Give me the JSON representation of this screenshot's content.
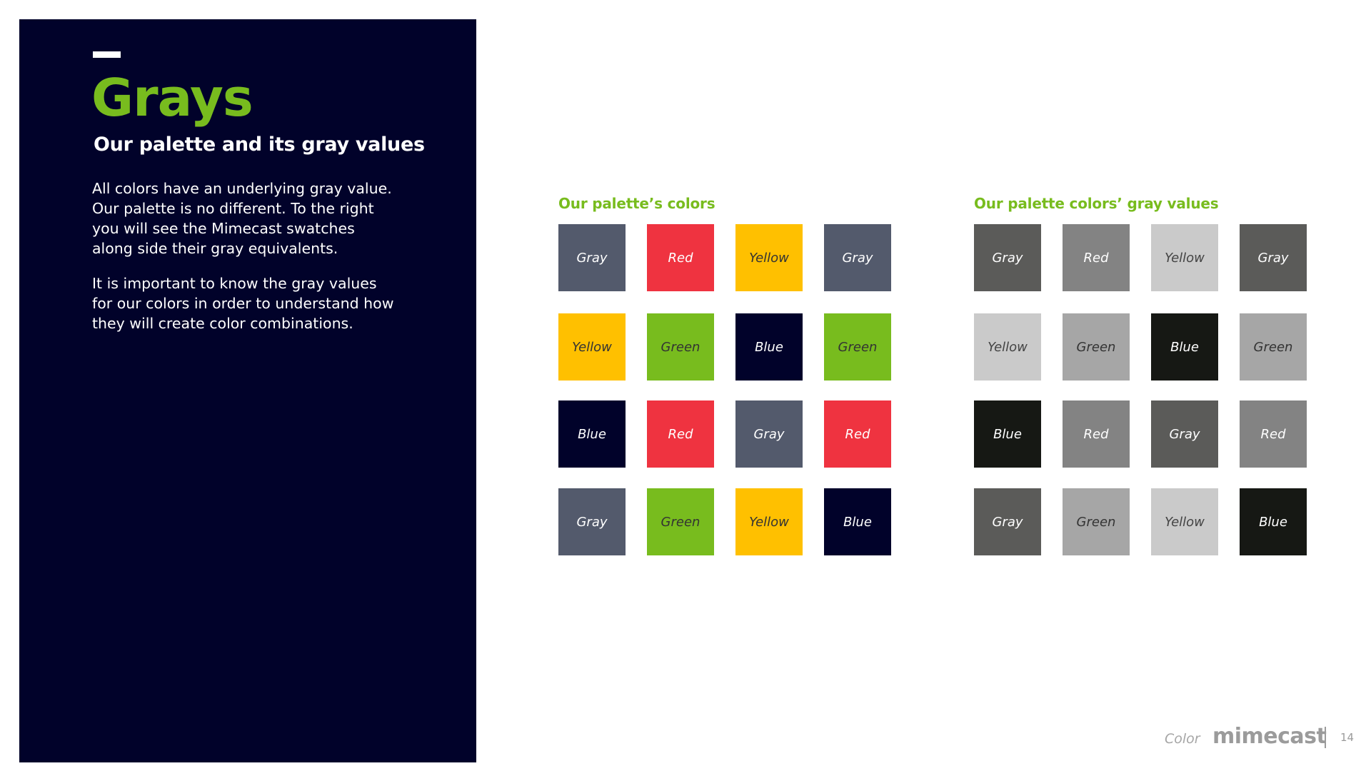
{
  "colors": {
    "panel_bg": "#01022a",
    "accent_green": "#78bc1e"
  },
  "slide": {
    "title": "Grays",
    "subtitle": "Our palette and its gray values",
    "paragraph1": "All colors have an underlying gray value. Our palette is no different. To the right you will see the Mimecast swatches along side their gray equivalents.",
    "paragraph2": "It is important to know the gray values for our colors in order to understand how they will create color combinations."
  },
  "palette": {
    "heading": "Our palette’s colors",
    "swatches": [
      {
        "label": "Gray",
        "bg": "#535a6c",
        "fg": "#ffffff"
      },
      {
        "label": "Red",
        "bg": "#ef3340",
        "fg": "#ffffff"
      },
      {
        "label": "Yellow",
        "bg": "#ffc000",
        "fg": "#333333"
      },
      {
        "label": "Gray",
        "bg": "#535a6c",
        "fg": "#ffffff"
      },
      {
        "label": "Yellow",
        "bg": "#ffc000",
        "fg": "#333333"
      },
      {
        "label": "Green",
        "bg": "#78bc1e",
        "fg": "#333333"
      },
      {
        "label": "Blue",
        "bg": "#01022a",
        "fg": "#ffffff"
      },
      {
        "label": "Green",
        "bg": "#78bc1e",
        "fg": "#333333"
      },
      {
        "label": "Blue",
        "bg": "#01022a",
        "fg": "#ffffff"
      },
      {
        "label": "Red",
        "bg": "#ef3340",
        "fg": "#ffffff"
      },
      {
        "label": "Gray",
        "bg": "#535a6c",
        "fg": "#ffffff"
      },
      {
        "label": "Red",
        "bg": "#ef3340",
        "fg": "#ffffff"
      },
      {
        "label": "Gray",
        "bg": "#535a6c",
        "fg": "#ffffff"
      },
      {
        "label": "Green",
        "bg": "#78bc1e",
        "fg": "#333333"
      },
      {
        "label": "Yellow",
        "bg": "#ffc000",
        "fg": "#333333"
      },
      {
        "label": "Blue",
        "bg": "#01022a",
        "fg": "#ffffff"
      }
    ]
  },
  "grays": {
    "heading": "Our palette colors’ gray values",
    "swatches": [
      {
        "label": "Gray",
        "bg": "#5b5b59",
        "fg": "#ffffff"
      },
      {
        "label": "Red",
        "bg": "#838383",
        "fg": "#ffffff"
      },
      {
        "label": "Yellow",
        "bg": "#cacaca",
        "fg": "#444444"
      },
      {
        "label": "Gray",
        "bg": "#5b5b59",
        "fg": "#ffffff"
      },
      {
        "label": "Yellow",
        "bg": "#cacaca",
        "fg": "#444444"
      },
      {
        "label": "Green",
        "bg": "#a6a6a6",
        "fg": "#333333"
      },
      {
        "label": "Blue",
        "bg": "#161814",
        "fg": "#ffffff"
      },
      {
        "label": "Green",
        "bg": "#a6a6a6",
        "fg": "#333333"
      },
      {
        "label": "Blue",
        "bg": "#161814",
        "fg": "#ffffff"
      },
      {
        "label": "Red",
        "bg": "#838383",
        "fg": "#ffffff"
      },
      {
        "label": "Gray",
        "bg": "#5b5b59",
        "fg": "#ffffff"
      },
      {
        "label": "Red",
        "bg": "#838383",
        "fg": "#ffffff"
      },
      {
        "label": "Gray",
        "bg": "#5b5b59",
        "fg": "#ffffff"
      },
      {
        "label": "Green",
        "bg": "#a6a6a6",
        "fg": "#333333"
      },
      {
        "label": "Yellow",
        "bg": "#cacaca",
        "fg": "#444444"
      },
      {
        "label": "Blue",
        "bg": "#161814",
        "fg": "#ffffff"
      }
    ]
  },
  "footer": {
    "section_label": "Color",
    "logo_text": "mimecast",
    "page_number": "14"
  }
}
